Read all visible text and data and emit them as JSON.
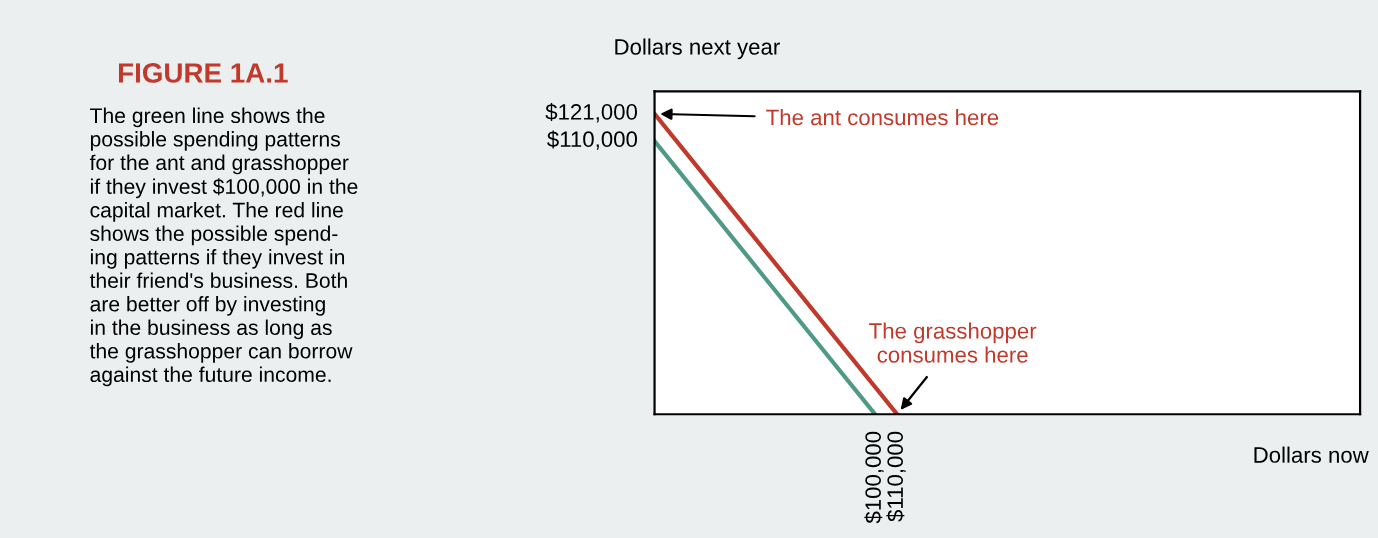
{
  "chart_data": {
    "type": "line",
    "title": "FIGURE 1A.1",
    "xlabel": "Dollars now",
    "ylabel": "Dollars next year",
    "series": [
      {
        "x": [
          0,
          100000
        ],
        "values": [
          110000,
          0
        ],
        "color": "#4f9a86"
      },
      {
        "x": [
          0,
          110000
        ],
        "values": [
          121000,
          0
        ],
        "color": "#c0392b"
      }
    ],
    "xlim": [
      0,
      320000
    ],
    "ylim": [
      0,
      130000
    ],
    "xticks": [
      {
        "value": 100000,
        "label": "$100,000"
      },
      {
        "value": 110000,
        "label": "$110,000"
      }
    ],
    "yticks": [
      {
        "value": 110000,
        "label": "$110,000"
      },
      {
        "value": 121000,
        "label": "$121,000"
      }
    ],
    "grid": false,
    "marker": "none",
    "line_style": "solid",
    "annotations": [
      "The green line shows the\npossible spending patterns\nfor the ant and grasshopper\nif they invest $100,000 in the\ncapital market. The red line\nshows the possible spend-\ning patterns if they invest in\ntheir friend's business. Both\nare better off by investing\nin the business as long as\nthe grasshopper can borrow\nagainst the future income.",
      {
        "text": "The ant consumes here",
        "x": 0,
        "y": 121000
      },
      {
        "text": "The grasshopper\nconsumes here",
        "x": 110000,
        "y": 0
      }
    ]
  }
}
